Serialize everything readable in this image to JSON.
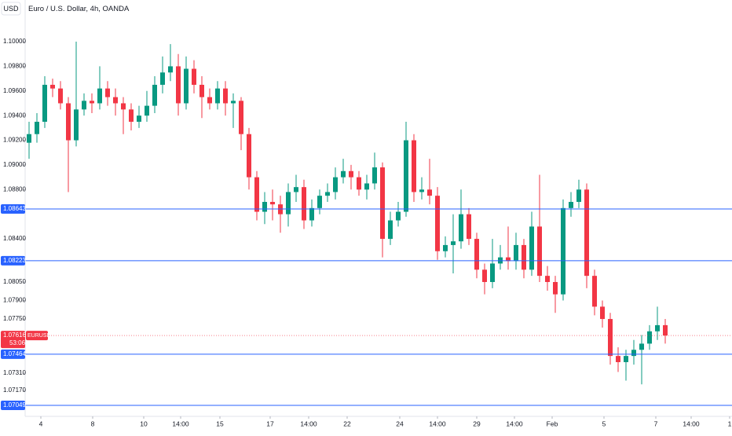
{
  "chart_data": {
    "type": "candlestick",
    "title": "Euro / U.S. Dollar, 4h, OANDA",
    "unit": "USD",
    "up_color": "#089981",
    "down_color": "#f23645",
    "open": [
      1.0918,
      1.0925,
      1.0935,
      1.0965,
      1.0962,
      1.095,
      1.092,
      1.0945,
      1.0952,
      1.095,
      1.0962,
      1.0955,
      1.095,
      1.0945,
      1.0935,
      1.094,
      1.0948,
      1.0965,
      1.0975,
      1.098,
      1.095,
      1.0978,
      1.0965,
      1.0955,
      1.095,
      1.0962,
      1.095,
      1.0952,
      1.0925,
      1.089,
      1.0862,
      1.087,
      1.0868,
      1.086,
      1.0878,
      1.0882,
      1.0855,
      1.0865,
      1.0875,
      1.0878,
      1.089,
      1.0895,
      1.089,
      1.088,
      1.0885,
      1.0898,
      1.084,
      1.0855,
      1.0862,
      1.092,
      1.0878,
      1.088,
      1.0875,
      1.083,
      1.0835,
      1.0838,
      1.086,
      1.084,
      1.0815,
      1.0805,
      1.082,
      1.0825,
      1.0822,
      1.0835,
      1.0815,
      1.085,
      1.081,
      1.0805,
      1.0795,
      1.0865,
      1.087,
      1.088,
      1.081,
      1.0785,
      1.0775,
      1.0745,
      1.074,
      1.0745,
      1.075,
      1.0755,
      1.0765,
      1.077
    ],
    "high": [
      1.0935,
      1.0942,
      1.0972,
      1.097,
      1.0968,
      1.0955,
      1.1,
      1.0958,
      1.0958,
      1.098,
      1.0968,
      1.0962,
      1.0955,
      1.095,
      1.0948,
      1.096,
      1.0972,
      1.0988,
      1.0998,
      1.099,
      1.0988,
      1.0985,
      1.0972,
      1.0962,
      1.0968,
      1.0968,
      1.0958,
      1.0955,
      1.093,
      1.0895,
      1.0878,
      1.088,
      1.0875,
      1.0885,
      1.0892,
      1.0888,
      1.0872,
      1.088,
      1.0885,
      1.0898,
      1.0905,
      1.09,
      1.0895,
      1.0892,
      1.091,
      1.0902,
      1.0862,
      1.087,
      1.0935,
      1.0925,
      1.089,
      1.0905,
      1.0882,
      1.0842,
      1.086,
      1.088,
      1.0865,
      1.0845,
      1.082,
      1.084,
      1.0835,
      1.085,
      1.0845,
      1.084,
      1.0862,
      1.0892,
      1.0818,
      1.081,
      1.0872,
      1.0878,
      1.0888,
      1.0885,
      1.0815,
      1.079,
      1.078,
      1.0752,
      1.075,
      1.0758,
      1.0762,
      1.077,
      1.0785,
      1.0775
    ],
    "low": [
      1.0905,
      1.0918,
      1.093,
      1.0955,
      1.0945,
      1.0878,
      1.0915,
      1.094,
      1.0942,
      1.0945,
      1.0948,
      1.094,
      1.0925,
      1.0928,
      1.093,
      1.0935,
      1.0942,
      1.0958,
      1.0968,
      1.094,
      1.0945,
      1.0958,
      1.0938,
      1.0945,
      1.0945,
      1.094,
      1.093,
      1.0912,
      1.088,
      1.0855,
      1.0852,
      1.0855,
      1.0845,
      1.085,
      1.087,
      1.0848,
      1.085,
      1.086,
      1.087,
      1.0872,
      1.0885,
      1.088,
      1.0875,
      1.0872,
      1.088,
      1.0825,
      1.0835,
      1.085,
      1.0858,
      1.087,
      1.0872,
      1.0868,
      1.0823,
      1.0825,
      1.0812,
      1.0832,
      1.0835,
      1.0808,
      1.0795,
      1.08,
      1.0815,
      1.0815,
      1.0815,
      1.0808,
      1.081,
      1.0805,
      1.0798,
      1.078,
      1.079,
      1.0858,
      1.0865,
      1.08,
      1.0778,
      1.0768,
      1.0738,
      1.0732,
      1.0725,
      1.0738,
      1.0722,
      1.075,
      1.0758,
      1.0755
    ],
    "close": [
      1.0925,
      1.0935,
      1.0965,
      1.0962,
      1.095,
      1.092,
      1.0945,
      1.0952,
      1.095,
      1.0962,
      1.0955,
      1.095,
      1.0945,
      1.0935,
      1.094,
      1.0948,
      1.0965,
      1.0975,
      1.098,
      1.095,
      1.0978,
      1.0965,
      1.0955,
      1.095,
      1.0962,
      1.095,
      1.0952,
      1.0925,
      1.089,
      1.0862,
      1.087,
      1.0868,
      1.086,
      1.0878,
      1.0882,
      1.0855,
      1.0865,
      1.0875,
      1.0878,
      1.089,
      1.0895,
      1.089,
      1.088,
      1.0885,
      1.0898,
      1.084,
      1.0855,
      1.0862,
      1.092,
      1.0878,
      1.088,
      1.0875,
      1.083,
      1.0835,
      1.0838,
      1.086,
      1.084,
      1.0815,
      1.0805,
      1.082,
      1.0825,
      1.0822,
      1.0835,
      1.0815,
      1.085,
      1.081,
      1.0805,
      1.0795,
      1.0865,
      1.087,
      1.088,
      1.081,
      1.0785,
      1.0775,
      1.0745,
      1.074,
      1.0745,
      1.075,
      1.0755,
      1.0765,
      1.077,
      1.07616
    ],
    "ylim": [
      1.0696,
      1.10338
    ],
    "yticks": [
      {
        "value": 1.1,
        "label": "1.10000"
      },
      {
        "value": 1.098,
        "label": "1.09800"
      },
      {
        "value": 1.096,
        "label": "1.09600"
      },
      {
        "value": 1.094,
        "label": "1.09400"
      },
      {
        "value": 1.092,
        "label": "1.09200"
      },
      {
        "value": 1.09,
        "label": "1.09000"
      },
      {
        "value": 1.088,
        "label": "1.08800"
      },
      {
        "value": 1.084,
        "label": "1.08400"
      },
      {
        "value": 1.0805,
        "label": "1.08050"
      },
      {
        "value": 1.079,
        "label": "1.07900"
      },
      {
        "value": 1.0775,
        "label": "1.07750"
      },
      {
        "value": 1.0731,
        "label": "1.07310"
      },
      {
        "value": 1.0717,
        "label": "1.07170"
      }
    ],
    "xlim": [
      -0.5,
      89.5
    ],
    "xticks": [
      {
        "value": 1.5,
        "label": "4"
      },
      {
        "value": 8.1,
        "label": "8"
      },
      {
        "value": 14.6,
        "label": "10"
      },
      {
        "value": 19.3,
        "label": "14:00"
      },
      {
        "value": 24.3,
        "label": "15"
      },
      {
        "value": 30.7,
        "label": "17"
      },
      {
        "value": 35.6,
        "label": "14:00"
      },
      {
        "value": 40.5,
        "label": "22"
      },
      {
        "value": 47.2,
        "label": "24"
      },
      {
        "value": 52,
        "label": "14:00"
      },
      {
        "value": 57,
        "label": "29"
      },
      {
        "value": 61.8,
        "label": "14:00"
      },
      {
        "value": 66.6,
        "label": "Feb"
      },
      {
        "value": 73.2,
        "label": "5"
      },
      {
        "value": 79.8,
        "label": "7"
      },
      {
        "value": 84.3,
        "label": "14:00"
      },
      {
        "value": 89.2,
        "label": "1"
      }
    ],
    "levels": [
      {
        "value": 1.08643,
        "label": "1.08643"
      },
      {
        "value": 1.08223,
        "label": "1.08223"
      },
      {
        "value": 1.07464,
        "label": "1.07464"
      },
      {
        "value": 1.07049,
        "label": "1.07049"
      }
    ],
    "level_color": "#2962ff",
    "last_price": {
      "symbol": "EURUSD",
      "value": 1.07616,
      "label": "1.07616",
      "countdown": "53:06",
      "color": "#f23645"
    },
    "grid": false
  }
}
